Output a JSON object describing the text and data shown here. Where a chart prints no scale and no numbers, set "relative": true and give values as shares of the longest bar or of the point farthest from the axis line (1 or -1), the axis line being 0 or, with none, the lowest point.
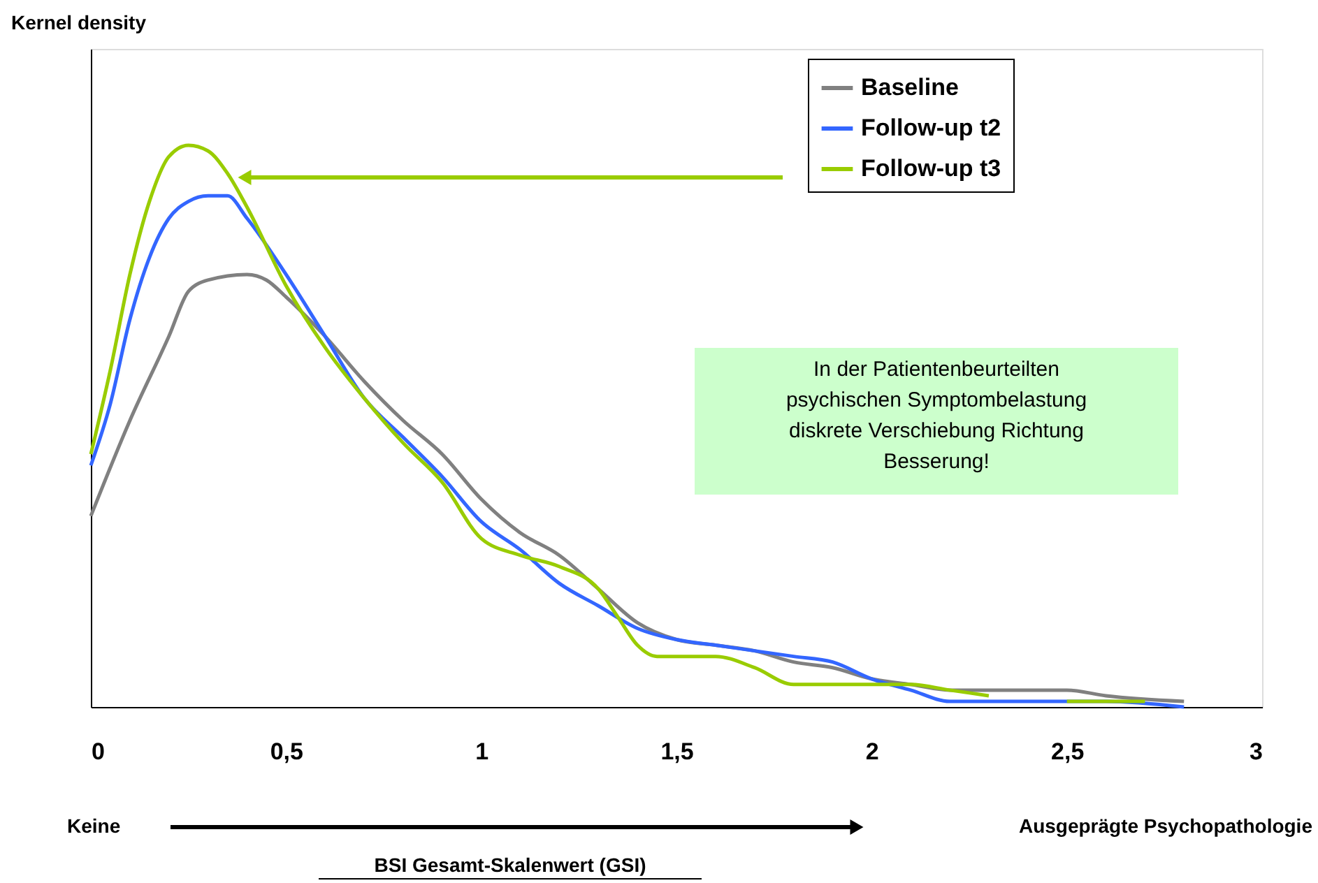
{
  "chart_data": {
    "type": "line",
    "relative": true,
    "xlabel": "BSI Gesamt-Skalenwert (GSI)",
    "xlim": [
      0,
      3
    ],
    "xticks": [
      0,
      {
        "value": 0.5,
        "label": "0,5"
      },
      1,
      {
        "value": 1.5,
        "label": "1,5"
      },
      2,
      {
        "value": 2.5,
        "label": "2,5"
      },
      3
    ],
    "grid": false,
    "legend": "top right",
    "annotations": [
      "Kernel density",
      "Keine",
      "Ausgeprägte Psychopathologie",
      "In der Patientenbeurteilten\npsychischen Symptombelastung\ndiskrete Verschiebung Richtung\nBesserung!"
    ],
    "series": [
      {
        "name": "Baseline",
        "color": "#808080",
        "x": [
          0,
          0.1,
          0.2,
          0.25,
          0.3,
          0.4,
          0.45,
          0.5,
          0.6,
          0.7,
          0.8,
          0.9,
          1.0,
          1.1,
          1.2,
          1.3,
          1.4,
          1.5,
          1.6,
          1.7,
          1.8,
          1.9,
          2.0,
          2.1,
          2.2,
          2.3,
          2.5,
          2.6,
          2.8
        ],
        "values": [
          0.34,
          0.51,
          0.66,
          0.74,
          0.76,
          0.77,
          0.76,
          0.73,
          0.66,
          0.58,
          0.51,
          0.45,
          0.37,
          0.31,
          0.27,
          0.21,
          0.15,
          0.12,
          0.11,
          0.1,
          0.08,
          0.07,
          0.05,
          0.04,
          0.03,
          0.03,
          0.03,
          0.02,
          0.01
        ]
      },
      {
        "name": "Follow-up t2",
        "color": "#3366ff",
        "x": [
          0,
          0.05,
          0.1,
          0.15,
          0.2,
          0.25,
          0.3,
          0.35,
          0.4,
          0.5,
          0.6,
          0.7,
          0.8,
          0.9,
          1.0,
          1.1,
          1.2,
          1.3,
          1.4,
          1.5,
          1.6,
          1.7,
          1.8,
          1.9,
          2.0,
          2.1,
          2.2,
          2.4,
          2.5,
          2.6,
          2.8
        ],
        "values": [
          0.43,
          0.54,
          0.69,
          0.8,
          0.87,
          0.9,
          0.91,
          0.91,
          0.87,
          0.77,
          0.66,
          0.55,
          0.48,
          0.41,
          0.33,
          0.28,
          0.22,
          0.18,
          0.14,
          0.12,
          0.11,
          0.1,
          0.09,
          0.08,
          0.05,
          0.03,
          0.01,
          0.01,
          0.01,
          0.01,
          0.0
        ]
      },
      {
        "name": "Follow-up t3",
        "color": "#99cc00",
        "x": [
          0,
          0.05,
          0.1,
          0.15,
          0.2,
          0.25,
          0.3,
          0.35,
          0.4,
          0.5,
          0.6,
          0.7,
          0.8,
          0.9,
          1.0,
          1.1,
          1.2,
          1.3,
          1.35,
          1.4,
          1.45,
          1.5,
          1.6,
          1.7,
          1.8,
          1.9,
          2.0,
          2.1,
          2.2,
          2.3,
          2.4,
          2.5,
          2.6,
          2.7
        ],
        "values": [
          0.45,
          0.6,
          0.77,
          0.9,
          0.98,
          1,
          0.99,
          0.95,
          0.89,
          0.75,
          0.64,
          0.55,
          0.47,
          0.4,
          0.3,
          0.27,
          0.25,
          0.21,
          0.16,
          0.11,
          0.09,
          0.09,
          0.09,
          0.07,
          0.04,
          0.04,
          0.04,
          0.04,
          0.03,
          0.02,
          null,
          0.01,
          0.01,
          0.01
        ]
      }
    ]
  }
}
